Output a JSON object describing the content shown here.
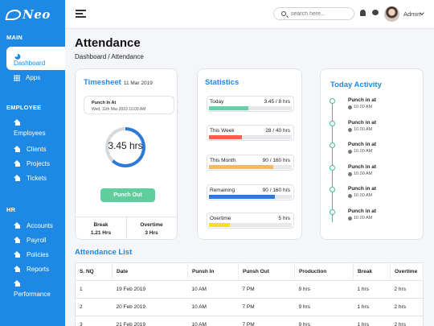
{
  "brand": {
    "name": "Neo"
  },
  "sidebar": {
    "sections": [
      {
        "title": "MAIN"
      },
      {
        "title": "EMPLOYEE"
      },
      {
        "title": "HR"
      }
    ],
    "items": [
      {
        "label": "Dashboard",
        "icon": "dashboard-icon",
        "active": true
      },
      {
        "label": "Apps",
        "icon": "grid-icon"
      },
      {
        "label": "Employees",
        "icon": "home-icon"
      },
      {
        "label": "Clients",
        "icon": "home-icon"
      },
      {
        "label": "Projects",
        "icon": "home-icon"
      },
      {
        "label": "Tickets",
        "icon": "home-icon"
      },
      {
        "label": "Accounts",
        "icon": "home-icon"
      },
      {
        "label": "Payroll",
        "icon": "home-icon"
      },
      {
        "label": "Policies",
        "icon": "home-icon"
      },
      {
        "label": "Reports",
        "icon": "home-icon"
      },
      {
        "label": "Performance",
        "icon": "home-icon"
      }
    ]
  },
  "header": {
    "search_placeholder": "search here...",
    "user_name": "Admin"
  },
  "page": {
    "title": "Attendance",
    "breadcrumb": "Dashboard / Attendance"
  },
  "timesheet": {
    "title": "Timesheet",
    "date": "11 Mar 2019",
    "punch_in_label": "Punch In At",
    "punch_in_time": "Wed, 11th Mar 2019 10.00 AM",
    "hours": "3.45 hrs",
    "progress": 0.62,
    "punch_out_label": "Punch Out",
    "break_label": "Break",
    "break_value": "1.21 Hrs",
    "overtime_label": "Overtime",
    "overtime_value": "3 Hrs"
  },
  "statistics": {
    "title": "Statistics",
    "items": [
      {
        "label": "Today",
        "value": "3.45 / 8 hrs",
        "progress": 0.48,
        "color": "#66d1a8"
      },
      {
        "label": "This Week",
        "value": "28 / 40 hrs",
        "progress": 0.4,
        "color": "#f4624a"
      },
      {
        "label": "This Month",
        "value": "90 / 160 hrs",
        "progress": 0.78,
        "color": "#f5b76a"
      },
      {
        "label": "Remaining",
        "value": "90 / 160 hrs",
        "progress": 0.8,
        "color": "#2e7bd6"
      },
      {
        "label": "Overtime",
        "value": "5 hrs",
        "progress": 0.25,
        "color": "#f2e11e"
      }
    ]
  },
  "activity": {
    "title": "Today Activity",
    "items": [
      {
        "title": "Punch in at",
        "time": "10.00 AM"
      },
      {
        "title": "Punch in at",
        "time": "10.00 AM"
      },
      {
        "title": "Punch in at",
        "time": "10.00 AM"
      },
      {
        "title": "Punch in at",
        "time": "10.00 AM"
      },
      {
        "title": "Punch in at",
        "time": "10.00 AM"
      },
      {
        "title": "Punch in at",
        "time": "10.00 AM"
      }
    ]
  },
  "attendance_list": {
    "title": "Attendance List",
    "columns": [
      "S. NQ",
      "Date",
      "Punsh In",
      "Punsh Out",
      "Production",
      "Break",
      "Overtime"
    ],
    "rows": [
      [
        "1",
        "19 Feb 2019",
        "10 AM",
        "7 PM",
        "9 hrs",
        "1 hrs",
        "2 hrs"
      ],
      [
        "2",
        "20 Feb 2019",
        "10 AM",
        "7 PM",
        "9 hrs",
        "1 hrs",
        "2 hrs"
      ],
      [
        "3",
        "21 Feb 2019",
        "10 AM",
        "7 PM",
        "9 hrs",
        "1 hrs",
        "2 hrs"
      ]
    ]
  }
}
